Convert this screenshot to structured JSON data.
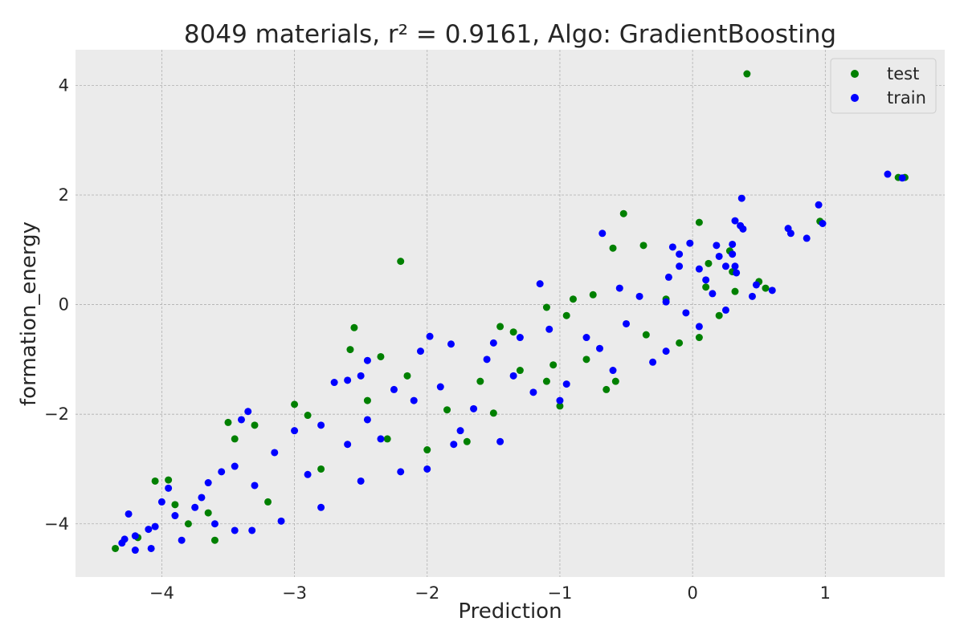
{
  "chart_data": {
    "type": "scatter",
    "title": "8049 materials, r² = 0.9161, Algo: GradientBoosting",
    "xlabel": "Prediction",
    "ylabel": "formation_energy",
    "xlim": [
      -4.65,
      1.9
    ],
    "ylim": [
      -4.97,
      4.65
    ],
    "xticks": [
      -4,
      -3,
      -2,
      -1,
      0,
      1
    ],
    "yticks": [
      -4,
      -2,
      0,
      2,
      4
    ],
    "xtick_labels": [
      "−4",
      "−3",
      "−2",
      "−1",
      "0",
      "1"
    ],
    "ytick_labels": [
      "−4",
      "−2",
      "0",
      "2",
      "4"
    ],
    "grid": true,
    "legend_position": "top-right",
    "background": "#ebebeb",
    "series": [
      {
        "name": "test",
        "color": "#008000",
        "points": [
          [
            0.41,
            4.21
          ],
          [
            1.55,
            2.32
          ],
          [
            1.6,
            2.32
          ],
          [
            0.96,
            1.52
          ],
          [
            0.05,
            1.5
          ],
          [
            -0.52,
            1.66
          ],
          [
            -0.37,
            1.08
          ],
          [
            -0.6,
            1.03
          ],
          [
            -2.2,
            0.79
          ],
          [
            0.28,
            0.98
          ],
          [
            0.12,
            0.75
          ],
          [
            0.5,
            0.42
          ],
          [
            0.55,
            0.3
          ],
          [
            0.32,
            0.24
          ],
          [
            0.1,
            0.32
          ],
          [
            -0.75,
            0.18
          ],
          [
            -1.1,
            -0.05
          ],
          [
            -0.95,
            -0.2
          ],
          [
            -2.55,
            -0.42
          ],
          [
            -2.58,
            -0.82
          ],
          [
            -2.35,
            -0.95
          ],
          [
            -2.15,
            -1.3
          ],
          [
            -3.5,
            -2.15
          ],
          [
            -3.3,
            -2.2
          ],
          [
            -3.45,
            -2.45
          ],
          [
            -2.9,
            -2.02
          ],
          [
            -3.0,
            -1.82
          ],
          [
            -2.45,
            -1.75
          ],
          [
            -1.85,
            -1.92
          ],
          [
            -1.0,
            -1.85
          ],
          [
            -0.65,
            -1.55
          ],
          [
            -1.5,
            -1.98
          ],
          [
            -1.1,
            -1.4
          ],
          [
            -0.58,
            -1.4
          ],
          [
            -1.7,
            -2.5
          ],
          [
            -3.65,
            -3.8
          ],
          [
            -3.9,
            -3.65
          ],
          [
            -3.95,
            -3.2
          ],
          [
            -4.05,
            -3.22
          ],
          [
            -4.35,
            -4.45
          ],
          [
            -4.18,
            -4.25
          ],
          [
            -2.0,
            -2.65
          ],
          [
            -0.1,
            -0.7
          ],
          [
            0.05,
            -0.6
          ],
          [
            0.2,
            -0.2
          ],
          [
            -0.35,
            -0.55
          ],
          [
            -0.8,
            -1.0
          ],
          [
            -1.3,
            -1.2
          ],
          [
            -2.8,
            -3.0
          ],
          [
            -3.2,
            -3.6
          ],
          [
            -3.6,
            -4.3
          ],
          [
            -2.3,
            -2.45
          ],
          [
            -1.6,
            -1.4
          ],
          [
            -0.2,
            0.1
          ],
          [
            -1.45,
            -0.4
          ],
          [
            -1.35,
            -0.5
          ],
          [
            -0.9,
            0.1
          ],
          [
            0.3,
            0.6
          ],
          [
            -3.8,
            -4.0
          ],
          [
            -1.05,
            -1.1
          ]
        ]
      },
      {
        "name": "train",
        "color": "#0000ff",
        "points": [
          [
            1.47,
            2.38
          ],
          [
            1.58,
            2.31
          ],
          [
            0.37,
            1.94
          ],
          [
            0.95,
            1.82
          ],
          [
            0.72,
            1.39
          ],
          [
            0.74,
            1.3
          ],
          [
            0.86,
            1.21
          ],
          [
            0.98,
            1.48
          ],
          [
            0.32,
            1.53
          ],
          [
            0.36,
            1.44
          ],
          [
            0.38,
            1.38
          ],
          [
            -0.68,
            1.3
          ],
          [
            -0.15,
            1.05
          ],
          [
            -0.02,
            1.12
          ],
          [
            0.18,
            1.08
          ],
          [
            0.3,
            1.1
          ],
          [
            0.3,
            0.92
          ],
          [
            0.2,
            0.88
          ],
          [
            0.25,
            0.7
          ],
          [
            0.32,
            0.7
          ],
          [
            0.05,
            0.65
          ],
          [
            -0.1,
            0.7
          ],
          [
            -0.18,
            0.5
          ],
          [
            -0.1,
            0.92
          ],
          [
            0.33,
            0.58
          ],
          [
            0.6,
            0.26
          ],
          [
            0.48,
            0.36
          ],
          [
            -1.15,
            0.38
          ],
          [
            -0.55,
            0.3
          ],
          [
            -0.2,
            0.05
          ],
          [
            -1.98,
            -0.58
          ],
          [
            -1.82,
            -0.72
          ],
          [
            -2.05,
            -0.85
          ],
          [
            -2.45,
            -1.02
          ],
          [
            -2.6,
            -1.38
          ],
          [
            -2.7,
            -1.42
          ],
          [
            -2.5,
            -1.3
          ],
          [
            -3.35,
            -1.95
          ],
          [
            -3.4,
            -2.1
          ],
          [
            -3.0,
            -2.3
          ],
          [
            -3.15,
            -2.7
          ],
          [
            -3.7,
            -3.52
          ],
          [
            -3.65,
            -3.25
          ],
          [
            -3.95,
            -3.35
          ],
          [
            -4.0,
            -3.6
          ],
          [
            -4.25,
            -3.82
          ],
          [
            -4.05,
            -4.05
          ],
          [
            -4.2,
            -4.22
          ],
          [
            -4.28,
            -4.28
          ],
          [
            -4.3,
            -4.35
          ],
          [
            -4.2,
            -4.48
          ],
          [
            -4.08,
            -4.45
          ],
          [
            -3.85,
            -4.3
          ],
          [
            -3.6,
            -4.0
          ],
          [
            -3.45,
            -4.12
          ],
          [
            -3.32,
            -4.12
          ],
          [
            -3.1,
            -3.95
          ],
          [
            -2.8,
            -3.7
          ],
          [
            -2.5,
            -3.22
          ],
          [
            -2.2,
            -3.05
          ],
          [
            -2.0,
            -3.0
          ],
          [
            -1.8,
            -2.55
          ],
          [
            -1.45,
            -2.5
          ],
          [
            -1.75,
            -2.3
          ],
          [
            -1.0,
            -1.75
          ],
          [
            -0.95,
            -1.45
          ],
          [
            -0.6,
            -1.2
          ],
          [
            -0.3,
            -1.05
          ],
          [
            -0.2,
            -0.85
          ],
          [
            0.05,
            -0.4
          ],
          [
            0.25,
            -0.1
          ],
          [
            0.45,
            0.15
          ],
          [
            0.1,
            0.45
          ],
          [
            -0.4,
            0.15
          ],
          [
            -1.08,
            -0.45
          ],
          [
            -1.3,
            -0.6
          ],
          [
            -1.5,
            -0.7
          ],
          [
            -1.55,
            -1.0
          ],
          [
            -0.8,
            -0.6
          ],
          [
            -0.5,
            -0.35
          ],
          [
            -2.25,
            -1.55
          ],
          [
            -2.1,
            -1.75
          ],
          [
            -1.9,
            -1.5
          ],
          [
            -2.8,
            -2.2
          ],
          [
            -2.6,
            -2.55
          ],
          [
            -3.45,
            -2.95
          ],
          [
            -3.3,
            -3.3
          ],
          [
            -3.55,
            -3.05
          ],
          [
            -3.9,
            -3.85
          ],
          [
            -4.1,
            -4.1
          ],
          [
            -1.2,
            -1.6
          ],
          [
            -1.65,
            -1.9
          ],
          [
            -2.35,
            -2.45
          ],
          [
            -2.9,
            -3.1
          ],
          [
            -3.75,
            -3.7
          ],
          [
            -0.05,
            -0.15
          ],
          [
            0.15,
            0.2
          ],
          [
            -0.7,
            -0.8
          ],
          [
            -1.35,
            -1.3
          ],
          [
            -2.45,
            -2.1
          ]
        ]
      }
    ]
  }
}
